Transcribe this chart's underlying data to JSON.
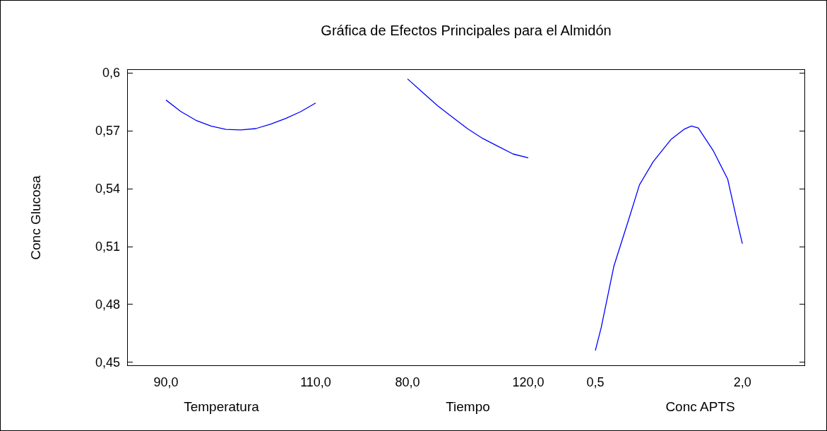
{
  "chart_data": [
    {
      "type": "line",
      "xlabel": "Temperatura",
      "ylabel": "Conc Glucosa",
      "marker": "none",
      "grid": false,
      "xlim": [
        84.8,
        110
      ],
      "xticks": [
        {
          "value": 90,
          "label": "90,0"
        },
        {
          "value": 110,
          "label": "110,0"
        }
      ],
      "ylim": [
        0.448,
        0.602
      ],
      "yticks": [
        {
          "value": 0.45,
          "label": "0,45"
        },
        {
          "value": 0.48,
          "label": "0,48"
        },
        {
          "value": 0.51,
          "label": "0,51"
        },
        {
          "value": 0.54,
          "label": "0,54"
        },
        {
          "value": 0.57,
          "label": "0,57"
        },
        {
          "value": 0.6,
          "label": "0,6"
        }
      ],
      "series": [
        {
          "color": "#0000ff",
          "x": [
            90,
            92,
            94,
            96,
            98,
            100,
            102,
            104,
            106,
            108,
            110
          ],
          "values": [
            0.586,
            0.58,
            0.5755,
            0.5725,
            0.5708,
            0.5705,
            0.5712,
            0.5735,
            0.5765,
            0.58,
            0.5845
          ]
        }
      ]
    },
    {
      "type": "line",
      "title": "Gráfica de Efectos Principales para el Almidón",
      "xlabel": "Tiempo",
      "marker": "none",
      "grid": false,
      "tick_labels": "x",
      "xlim": [
        80,
        120
      ],
      "xticks": [
        {
          "value": 80,
          "label": "80,0"
        },
        {
          "value": 120,
          "label": "120,0"
        }
      ],
      "ylim": [
        0.448,
        0.602
      ],
      "series": [
        {
          "color": "#0000ff",
          "x": [
            80,
            85,
            90,
            95,
            100,
            105,
            110,
            115,
            120
          ],
          "values": [
            0.597,
            0.59,
            0.583,
            0.577,
            0.571,
            0.566,
            0.562,
            0.558,
            0.556
          ]
        }
      ]
    },
    {
      "type": "line",
      "xlabel": "Conc APTS",
      "marker": "none",
      "grid": false,
      "tick_labels": "x",
      "xlim": [
        0.5,
        2.64
      ],
      "xticks": [
        {
          "value": 0.5,
          "label": "0,5"
        },
        {
          "value": 2,
          "label": "2,0"
        }
      ],
      "ylim": [
        0.448,
        0.602
      ],
      "series": [
        {
          "color": "#0000ff",
          "x": [
            0.5,
            0.56,
            0.69,
            0.84,
            0.95,
            1.09,
            1.27,
            1.41,
            1.48,
            1.55,
            1.7,
            1.85,
            1.96,
            2.0
          ],
          "values": [
            0.456,
            0.468,
            0.5,
            0.524,
            0.542,
            0.554,
            0.5655,
            0.571,
            0.5725,
            0.5715,
            0.56,
            0.545,
            0.52,
            0.5115
          ]
        }
      ]
    }
  ]
}
